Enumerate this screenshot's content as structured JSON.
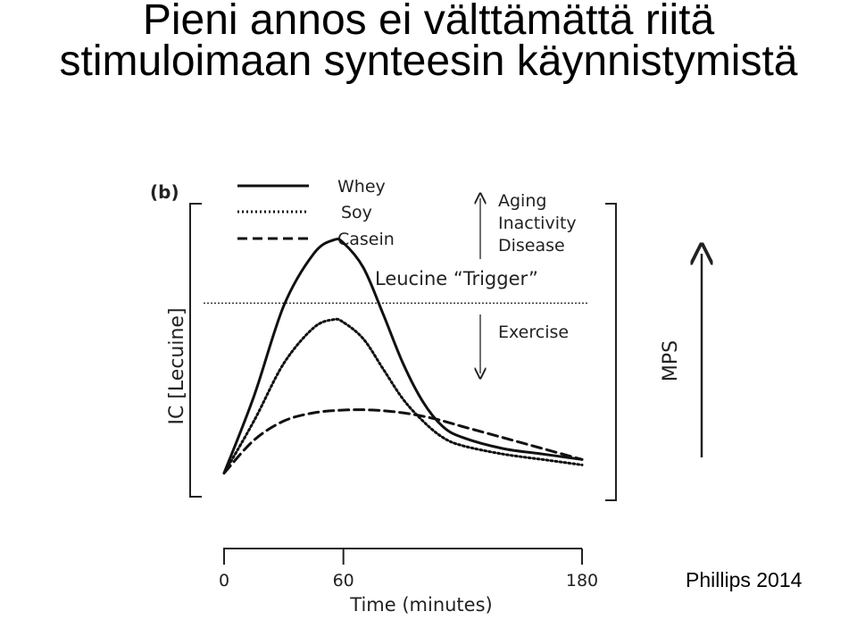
{
  "title": {
    "line1": "Pieni annos ei välttämättä riitä",
    "line2": "stimuloimaan synteesin käynnistymistä"
  },
  "citation": "Phillips 2014",
  "chart_data": {
    "type": "line",
    "panel_label": "(b)",
    "xlabel": "Time (minutes)",
    "ylabel": "IC [Lecuine]",
    "right_axis_label": "MPS",
    "xlim": [
      0,
      180
    ],
    "ylim": [
      0,
      100
    ],
    "x_ticks": [
      0,
      60,
      180
    ],
    "legend_position": "top-left",
    "threshold": {
      "label": "Leucine “Trigger”",
      "value": 67,
      "style": "dotted"
    },
    "annotations": {
      "up": [
        "Aging",
        "Inactivity",
        "Disease"
      ],
      "down": [
        "Exercise"
      ]
    },
    "series": [
      {
        "name": "Whey",
        "line_style": "solid",
        "x": [
          0,
          15,
          30,
          45,
          55,
          60,
          70,
          80,
          90,
          100,
          110,
          120,
          140,
          160,
          180
        ],
        "y": [
          5,
          33,
          66,
          85,
          90,
          89,
          80,
          63,
          45,
          31,
          22,
          18,
          14,
          12,
          10
        ]
      },
      {
        "name": "Soy",
        "line_style": "dotted",
        "x": [
          0,
          15,
          30,
          45,
          55,
          60,
          70,
          80,
          90,
          100,
          110,
          120,
          140,
          160,
          180
        ],
        "y": [
          5,
          24,
          45,
          58,
          61,
          60,
          54,
          43,
          32,
          24,
          18,
          15,
          12,
          10,
          8
        ]
      },
      {
        "name": "Casein",
        "line_style": "dashed",
        "x": [
          0,
          15,
          30,
          45,
          60,
          75,
          90,
          105,
          120,
          140,
          160,
          180
        ],
        "y": [
          5,
          17,
          24,
          27,
          28,
          28,
          27,
          25,
          22,
          18,
          14,
          10
        ]
      }
    ]
  }
}
